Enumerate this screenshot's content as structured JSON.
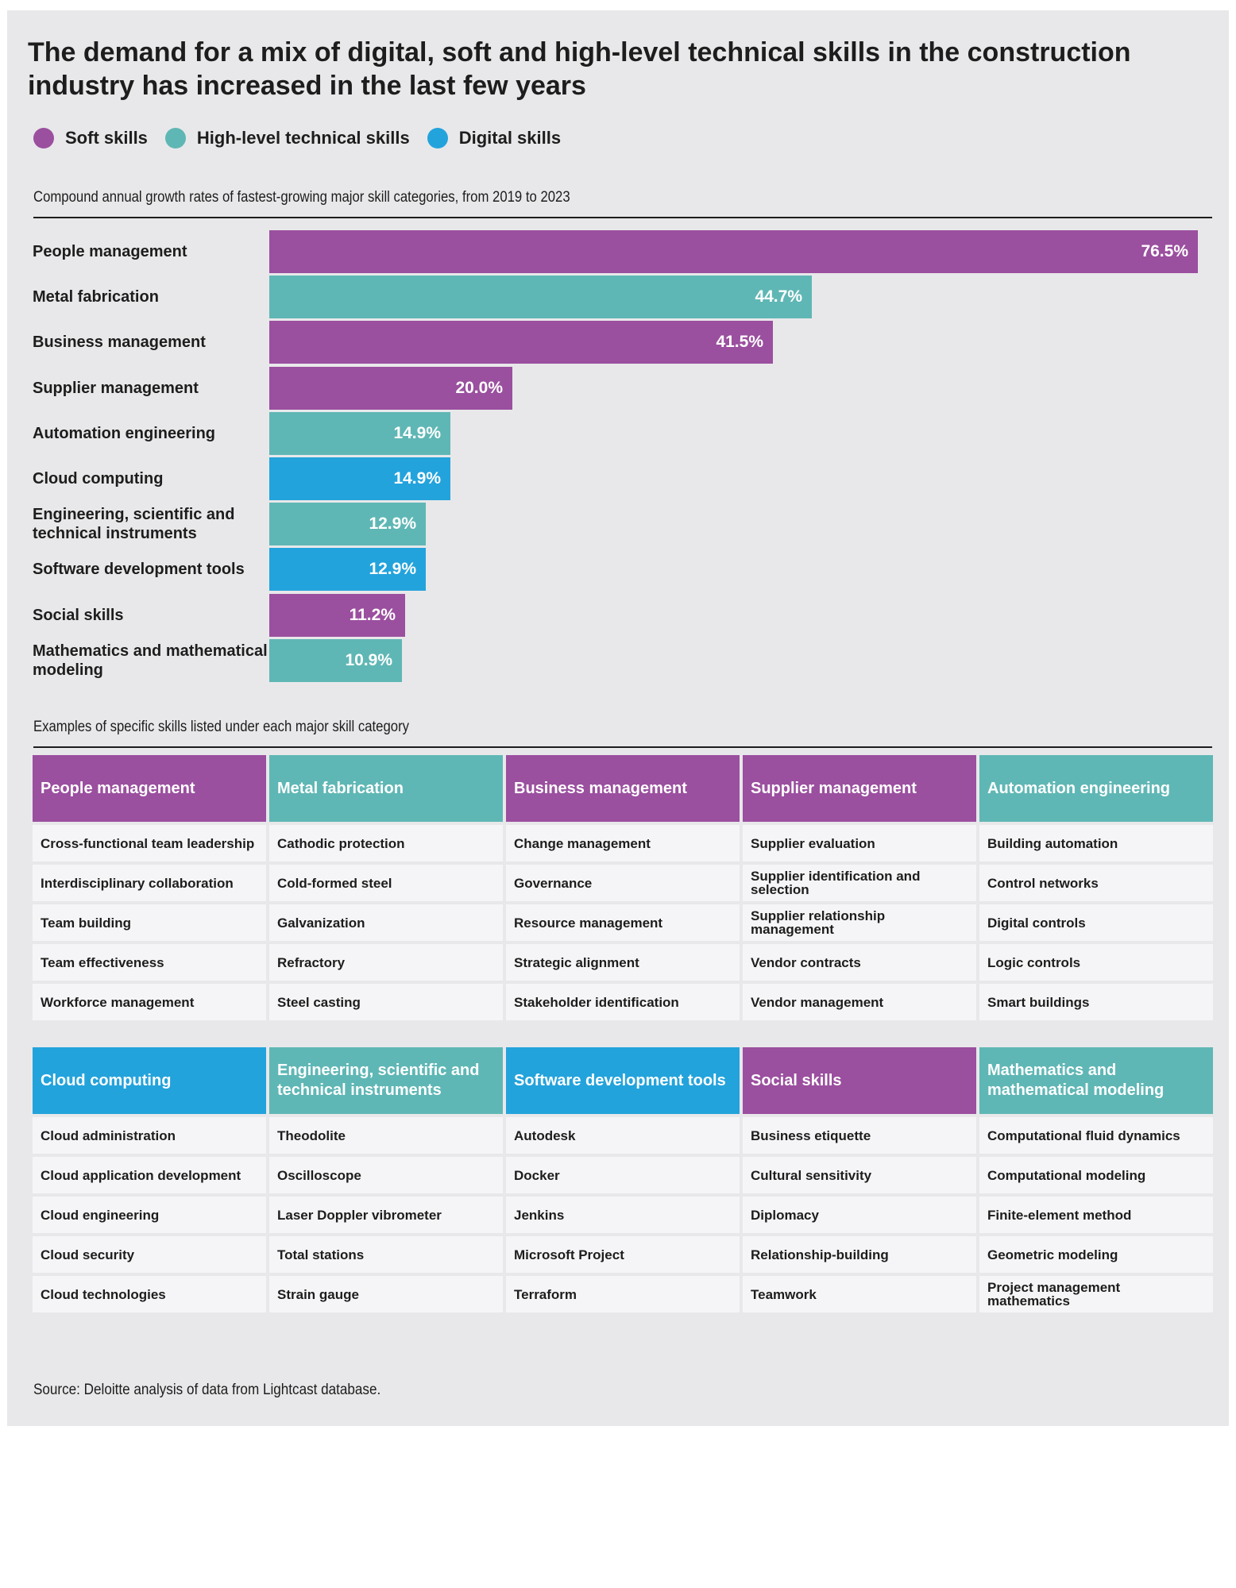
{
  "title": "The demand for a mix of digital, soft and high-level technical skills in the construction industry has increased in the last few years",
  "colors": {
    "soft": "#9b4f9f",
    "technical": "#5fb7b5",
    "digital": "#23a3dc",
    "panel": "#e8e8ea"
  },
  "legend": [
    {
      "label": "Soft skills",
      "key": "soft"
    },
    {
      "label": "High-level technical skills",
      "key": "technical"
    },
    {
      "label": "Digital skills",
      "key": "digital"
    }
  ],
  "chart_data": {
    "type": "bar",
    "orientation": "horizontal",
    "title": "Compound annual growth rates of fastest-growing major skill categories, from 2019 to 2023",
    "xlim": [
      0,
      76.5
    ],
    "grid": false,
    "legend_position": "top-left",
    "categories": [
      "People management",
      "Metal fabrication",
      "Business management",
      "Supplier management",
      "Automation engineering",
      "Cloud computing",
      "Engineering, scientific and technical instruments",
      "Software development tools",
      "Social skills",
      "Mathematics and mathematical modeling"
    ],
    "values": [
      76.5,
      44.7,
      41.5,
      20.0,
      14.9,
      14.9,
      12.9,
      12.9,
      11.2,
      10.9
    ],
    "value_labels": [
      "76.5%",
      "44.7%",
      "41.5%",
      "20.0%",
      "14.9%",
      "14.9%",
      "12.9%",
      "12.9%",
      "11.2%",
      "10.9%"
    ],
    "groups": [
      "soft",
      "technical",
      "soft",
      "soft",
      "technical",
      "digital",
      "technical",
      "digital",
      "soft",
      "technical"
    ]
  },
  "examples_label": "Examples of specific skills listed under each major skill category",
  "skill_tables": [
    [
      {
        "header": "People management",
        "key": "soft",
        "items": [
          "Cross-functional team leadership",
          "Interdisciplinary collaboration",
          "Team building",
          "Team effectiveness",
          "Workforce management"
        ]
      },
      {
        "header": "Metal fabrication",
        "key": "technical",
        "items": [
          "Cathodic protection",
          "Cold-formed steel",
          "Galvanization",
          "Refractory",
          "Steel casting"
        ]
      },
      {
        "header": "Business management",
        "key": "soft",
        "items": [
          "Change management",
          "Governance",
          "Resource management",
          "Strategic alignment",
          "Stakeholder identification"
        ]
      },
      {
        "header": "Supplier management",
        "key": "soft",
        "items": [
          "Supplier evaluation",
          "Supplier identification and selection",
          "Supplier relationship management",
          "Vendor contracts",
          "Vendor management"
        ]
      },
      {
        "header": "Automation engineering",
        "key": "technical",
        "items": [
          "Building automation",
          "Control networks",
          "Digital controls",
          "Logic controls",
          "Smart buildings"
        ]
      }
    ],
    [
      {
        "header": "Cloud computing",
        "key": "digital",
        "items": [
          "Cloud administration",
          "Cloud application development",
          "Cloud engineering",
          "Cloud security",
          "Cloud technologies"
        ]
      },
      {
        "header": "Engineering, scientific and technical instruments",
        "key": "technical",
        "items": [
          "Theodolite",
          "Oscilloscope",
          "Laser Doppler vibrometer",
          "Total stations",
          "Strain gauge"
        ]
      },
      {
        "header": "Software development tools",
        "key": "digital",
        "items": [
          "Autodesk",
          "Docker",
          "Jenkins",
          "Microsoft Project",
          "Terraform"
        ]
      },
      {
        "header": "Social skills",
        "key": "soft",
        "items": [
          "Business etiquette",
          "Cultural sensitivity",
          "Diplomacy",
          "Relationship-building",
          "Teamwork"
        ]
      },
      {
        "header": "Mathematics and mathematical modeling",
        "key": "technical",
        "items": [
          "Computational fluid dynamics",
          "Computational modeling",
          "Finite-element method",
          "Geometric modeling",
          "Project management mathematics"
        ]
      }
    ]
  ],
  "source": "Source: Deloitte analysis of data from Lightcast database."
}
